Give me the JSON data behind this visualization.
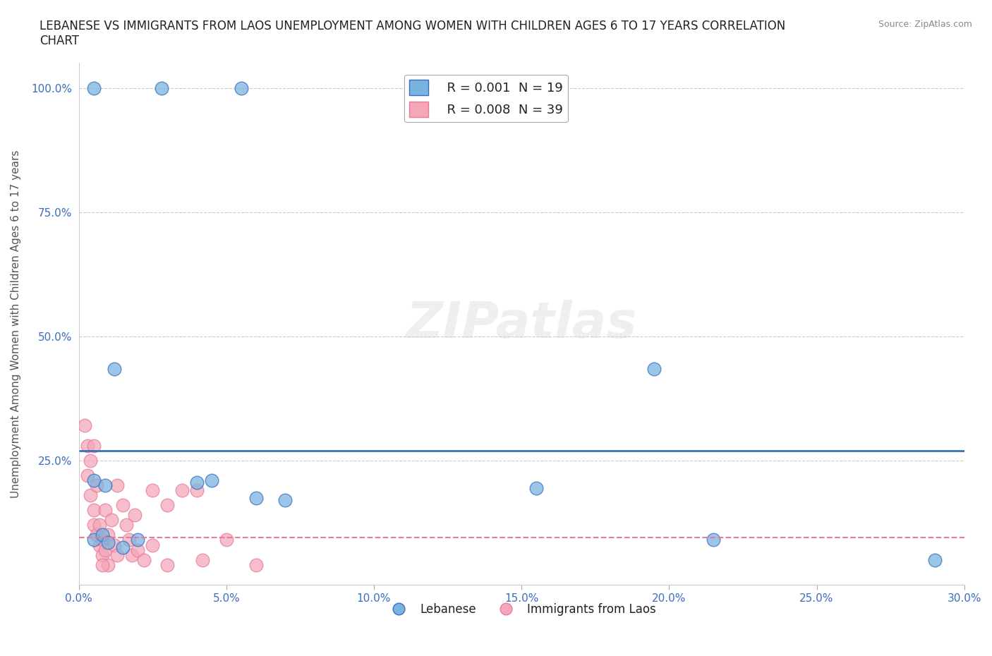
{
  "title": "LEBANESE VS IMMIGRANTS FROM LAOS UNEMPLOYMENT AMONG WOMEN WITH CHILDREN AGES 6 TO 17 YEARS CORRELATION\nCHART",
  "source": "Source: ZipAtlas.com",
  "xlabel": "",
  "ylabel": "Unemployment Among Women with Children Ages 6 to 17 years",
  "xlim": [
    0.0,
    0.3
  ],
  "ylim": [
    0.0,
    1.05
  ],
  "xticks": [
    0.0,
    0.05,
    0.1,
    0.15,
    0.2,
    0.25,
    0.3
  ],
  "xticklabels": [
    "0.0%",
    "5.0%",
    "10.0%",
    "15.0%",
    "20.0%",
    "25.0%",
    "30.0%"
  ],
  "yticks": [
    0.0,
    0.25,
    0.5,
    0.75,
    1.0
  ],
  "yticklabels": [
    "",
    "25.0%",
    "50.0%",
    "75.0%",
    "100.0%"
  ],
  "grid_color": "#cccccc",
  "bg_color": "#ffffff",
  "watermark": "ZIPatlas",
  "legend_r1": "R = 0.001  N = 19",
  "legend_r2": "R = 0.008  N = 39",
  "legend_label1": "Lebanese",
  "legend_label2": "Immigrants from Laos",
  "blue_color": "#7ab3e0",
  "pink_color": "#f4a7b9",
  "blue_line_color": "#3a6fbf",
  "pink_line_color": "#e87b99",
  "blue_points": [
    [
      0.005,
      1.0
    ],
    [
      0.028,
      1.0
    ],
    [
      0.055,
      1.0
    ],
    [
      0.012,
      0.435
    ],
    [
      0.005,
      0.21
    ],
    [
      0.009,
      0.2
    ],
    [
      0.04,
      0.205
    ],
    [
      0.045,
      0.21
    ],
    [
      0.06,
      0.175
    ],
    [
      0.07,
      0.17
    ],
    [
      0.005,
      0.09
    ],
    [
      0.008,
      0.1
    ],
    [
      0.01,
      0.085
    ],
    [
      0.015,
      0.075
    ],
    [
      0.02,
      0.09
    ],
    [
      0.155,
      0.195
    ],
    [
      0.195,
      0.435
    ],
    [
      0.215,
      0.09
    ],
    [
      0.29,
      0.05
    ]
  ],
  "pink_points": [
    [
      0.002,
      0.32
    ],
    [
      0.003,
      0.28
    ],
    [
      0.003,
      0.22
    ],
    [
      0.004,
      0.25
    ],
    [
      0.004,
      0.18
    ],
    [
      0.005,
      0.15
    ],
    [
      0.005,
      0.12
    ],
    [
      0.006,
      0.2
    ],
    [
      0.006,
      0.1
    ],
    [
      0.007,
      0.08
    ],
    [
      0.007,
      0.12
    ],
    [
      0.008,
      0.09
    ],
    [
      0.008,
      0.06
    ],
    [
      0.009,
      0.15
    ],
    [
      0.009,
      0.07
    ],
    [
      0.01,
      0.04
    ],
    [
      0.01,
      0.1
    ],
    [
      0.011,
      0.13
    ],
    [
      0.012,
      0.08
    ],
    [
      0.013,
      0.06
    ],
    [
      0.013,
      0.2
    ],
    [
      0.015,
      0.16
    ],
    [
      0.016,
      0.12
    ],
    [
      0.017,
      0.09
    ],
    [
      0.018,
      0.06
    ],
    [
      0.019,
      0.14
    ],
    [
      0.02,
      0.07
    ],
    [
      0.022,
      0.05
    ],
    [
      0.025,
      0.19
    ],
    [
      0.025,
      0.08
    ],
    [
      0.03,
      0.16
    ],
    [
      0.03,
      0.04
    ],
    [
      0.035,
      0.19
    ],
    [
      0.04,
      0.19
    ],
    [
      0.042,
      0.05
    ],
    [
      0.05,
      0.09
    ],
    [
      0.06,
      0.04
    ],
    [
      0.005,
      0.28
    ],
    [
      0.008,
      0.04
    ]
  ],
  "blue_regression_y": 0.27,
  "pink_regression_y": 0.095
}
